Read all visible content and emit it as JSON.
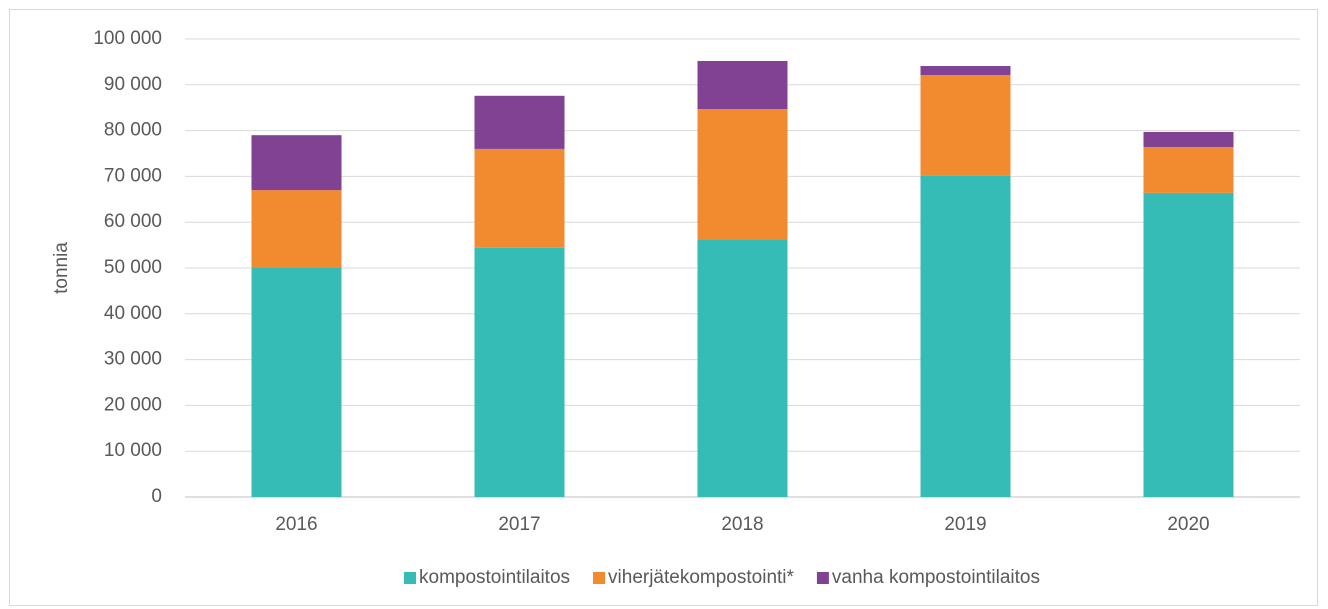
{
  "chart_data": {
    "type": "stacked_bar",
    "y_label": "tonnia",
    "categories": [
      "2016",
      "2017",
      "2018",
      "2019",
      "2020"
    ],
    "series": [
      {
        "name": "kompostointilaitos",
        "color": "#35bcb6",
        "values": [
          50000,
          54400,
          56300,
          70100,
          66400
        ]
      },
      {
        "name": "viherjätekompostointi*",
        "color": "#f28b30",
        "values": [
          17000,
          21600,
          28400,
          22000,
          10000
        ]
      },
      {
        "name": "vanha kompostointilaitos",
        "color": "#814294",
        "values": [
          12000,
          11600,
          10500,
          2000,
          3300
        ]
      }
    ],
    "ylim": [
      0,
      100000
    ],
    "yticks": [
      0,
      {
        "value": 10000,
        "label": "10 000"
      },
      {
        "value": 20000,
        "label": "20 000"
      },
      {
        "value": 30000,
        "label": "30 000"
      },
      {
        "value": 40000,
        "label": "40 000"
      },
      {
        "value": 50000,
        "label": "50 000"
      },
      {
        "value": 60000,
        "label": "60 000"
      },
      {
        "value": 70000,
        "label": "70 000"
      },
      {
        "value": 80000,
        "label": "80 000"
      },
      {
        "value": 90000,
        "label": "90 000"
      },
      {
        "value": 100000,
        "label": "100 000"
      }
    ],
    "grid": true,
    "legend": "bottom"
  }
}
